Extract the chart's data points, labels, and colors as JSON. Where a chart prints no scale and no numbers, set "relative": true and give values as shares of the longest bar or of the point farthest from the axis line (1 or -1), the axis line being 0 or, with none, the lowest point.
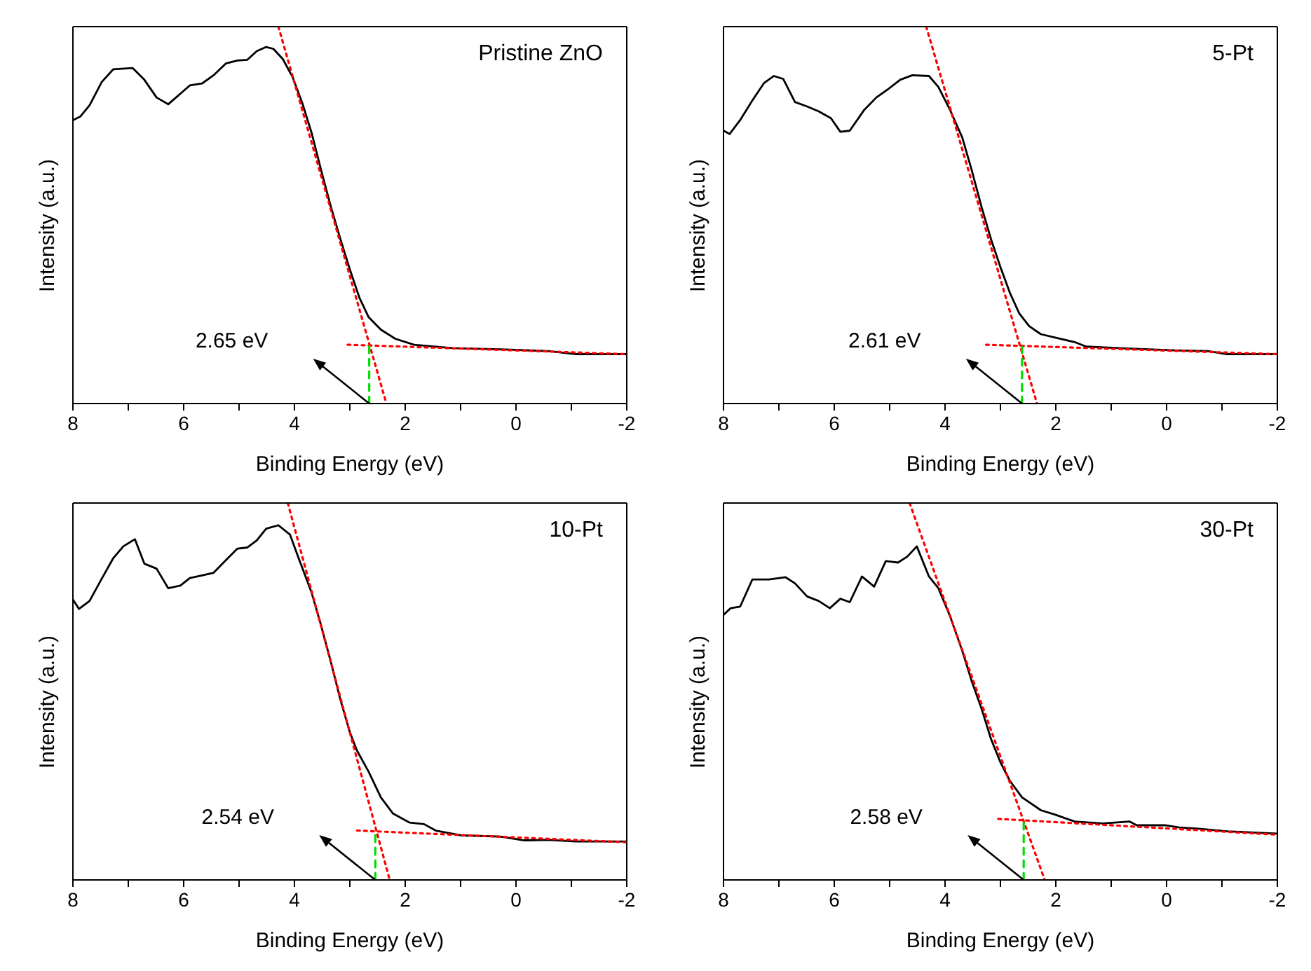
{
  "chart_data": [
    {
      "type": "line",
      "title": "Pristine ZnO",
      "xlabel": "Binding Energy (eV)",
      "ylabel": "Intensity (a.u.)",
      "relative": true,
      "xlim": [
        8,
        -2
      ],
      "xticks": [
        8,
        {
          "value": 7,
          "label": null
        },
        6,
        {
          "value": 5,
          "label": null
        },
        4,
        {
          "value": 3,
          "label": null
        },
        2,
        {
          "value": 1,
          "label": null
        },
        0,
        {
          "value": -1,
          "label": null
        },
        {
          "value": -2,
          "label": "-2"
        }
      ],
      "marker": "none",
      "annotations": [
        "2.65 eV"
      ],
      "series": [
        {
          "color": "#000000",
          "line_style": "solid",
          "x": [
            8,
            7.87,
            7.7,
            7.48,
            7.27,
            6.92,
            6.71,
            6.49,
            6.28,
            6.06,
            5.89,
            5.67,
            5.46,
            5.24,
            5.03,
            4.85,
            4.68,
            4.51,
            4.38,
            4.21,
            4.03,
            3.86,
            3.69,
            3.52,
            3.34,
            3.17,
            3.0,
            2.83,
            2.66,
            2.44,
            2.18,
            1.84,
            1.15,
            0.28,
            -0.58,
            -1.09,
            -2
          ],
          "values": [
            0.752,
            0.761,
            0.791,
            0.853,
            0.887,
            0.89,
            0.859,
            0.812,
            0.794,
            0.822,
            0.844,
            0.849,
            0.871,
            0.902,
            0.91,
            0.912,
            0.935,
            0.946,
            0.941,
            0.914,
            0.865,
            0.798,
            0.718,
            0.62,
            0.521,
            0.436,
            0.356,
            0.282,
            0.229,
            0.196,
            0.172,
            0.156,
            0.147,
            0.144,
            0.139,
            0.131,
            0.131
          ]
        },
        {
          "type": "line",
          "color": "#ff0000",
          "line_style": "dotted",
          "x": [
            4.29,
            2.34
          ],
          "values": [
            1,
            0
          ]
        },
        {
          "type": "line",
          "color": "#ff0000",
          "line_style": "dotted",
          "x": [
            3.04,
            -2
          ],
          "values": [
            0.156,
            0.131
          ]
        },
        {
          "type": "line",
          "color": "#00dd00",
          "line_style": "dashed",
          "x": [
            2.65,
            2.65
          ],
          "values": [
            0,
            0.152
          ]
        }
      ]
    },
    {
      "type": "line",
      "title": "5-Pt",
      "xlabel": "Binding Energy (eV)",
      "ylabel": "Intensity (a.u.)",
      "relative": true,
      "xlim": [
        8,
        -2
      ],
      "xticks": [
        8,
        {
          "value": 7,
          "label": null
        },
        6,
        {
          "value": 5,
          "label": null
        },
        4,
        {
          "value": 3,
          "label": null
        },
        2,
        {
          "value": 1,
          "label": null
        },
        0,
        {
          "value": -1,
          "label": null
        },
        {
          "value": -2,
          "label": "-2"
        }
      ],
      "marker": "none",
      "annotations": [
        "2.61 eV"
      ],
      "series": [
        {
          "color": "#000000",
          "line_style": "solid",
          "x": [
            8,
            7.89,
            7.7,
            7.48,
            7.27,
            7.09,
            6.92,
            6.71,
            6.49,
            6.28,
            6.06,
            5.89,
            5.72,
            5.46,
            5.24,
            5.03,
            4.81,
            4.59,
            4.29,
            4.12,
            3.91,
            3.69,
            3.52,
            3.34,
            3.17,
            3.0,
            2.83,
            2.66,
            2.48,
            2.27,
            2.01,
            1.66,
            1.45,
            0.72,
            -0.15,
            -0.75,
            -1.09,
            -2
          ],
          "values": [
            0.724,
            0.715,
            0.752,
            0.804,
            0.85,
            0.869,
            0.861,
            0.8,
            0.788,
            0.775,
            0.757,
            0.721,
            0.724,
            0.779,
            0.812,
            0.834,
            0.859,
            0.871,
            0.869,
            0.84,
            0.779,
            0.706,
            0.62,
            0.521,
            0.436,
            0.362,
            0.294,
            0.239,
            0.205,
            0.184,
            0.175,
            0.163,
            0.151,
            0.146,
            0.141,
            0.139,
            0.131,
            0.131
          ]
        },
        {
          "type": "line",
          "color": "#ff0000",
          "line_style": "dotted",
          "x": [
            4.34,
            2.34
          ],
          "values": [
            1,
            0
          ]
        },
        {
          "type": "line",
          "color": "#ff0000",
          "line_style": "dotted",
          "x": [
            3.26,
            -2
          ],
          "values": [
            0.156,
            0.131
          ]
        },
        {
          "type": "line",
          "color": "#00dd00",
          "line_style": "dashed",
          "x": [
            2.61,
            2.61
          ],
          "values": [
            0,
            0.15
          ]
        }
      ]
    },
    {
      "type": "line",
      "title": "10-Pt",
      "xlabel": "Binding Energy (eV)",
      "ylabel": "Intensity (a.u.)",
      "relative": true,
      "xlim": [
        8,
        -2
      ],
      "xticks": [
        8,
        {
          "value": 7,
          "label": null
        },
        6,
        {
          "value": 5,
          "label": null
        },
        4,
        {
          "value": 3,
          "label": null
        },
        2,
        {
          "value": 1,
          "label": null
        },
        0,
        {
          "value": -1,
          "label": null
        },
        {
          "value": -2,
          "label": "-2"
        }
      ],
      "marker": "none",
      "annotations": [
        "2.54 eV"
      ],
      "series": [
        {
          "color": "#000000",
          "line_style": "solid",
          "x": [
            8,
            7.89,
            7.7,
            7.48,
            7.27,
            7.09,
            6.88,
            6.71,
            6.49,
            6.28,
            6.06,
            5.89,
            5.67,
            5.46,
            5.24,
            5.03,
            4.85,
            4.68,
            4.51,
            4.29,
            4.08,
            3.91,
            3.69,
            3.52,
            3.34,
            3.17,
            3.0,
            2.87,
            2.66,
            2.44,
            2.22,
            1.92,
            1.66,
            1.45,
            0.97,
            0.28,
            -0.15,
            -0.58,
            -1.09,
            -2
          ],
          "values": [
            0.744,
            0.719,
            0.74,
            0.799,
            0.854,
            0.885,
            0.904,
            0.839,
            0.826,
            0.774,
            0.781,
            0.801,
            0.808,
            0.815,
            0.848,
            0.879,
            0.882,
            0.901,
            0.932,
            0.941,
            0.916,
            0.848,
            0.762,
            0.676,
            0.577,
            0.478,
            0.392,
            0.343,
            0.287,
            0.219,
            0.176,
            0.152,
            0.148,
            0.131,
            0.118,
            0.115,
            0.105,
            0.106,
            0.102,
            0.102
          ]
        },
        {
          "type": "line",
          "color": "#ff0000",
          "line_style": "dotted",
          "x": [
            4.12,
            2.28
          ],
          "values": [
            1,
            0
          ]
        },
        {
          "type": "line",
          "color": "#ff0000",
          "line_style": "dotted",
          "x": [
            2.87,
            -2
          ],
          "values": [
            0.131,
            0.1
          ]
        },
        {
          "type": "line",
          "color": "#00dd00",
          "line_style": "dashed",
          "x": [
            2.54,
            2.54
          ],
          "values": [
            0,
            0.128
          ]
        }
      ]
    },
    {
      "type": "line",
      "title": "30-Pt",
      "xlabel": "Binding Energy (eV)",
      "ylabel": "Intensity (a.u.)",
      "relative": true,
      "xlim": [
        8,
        -2
      ],
      "xticks": [
        8,
        {
          "value": 7,
          "label": null
        },
        6,
        {
          "value": 5,
          "label": null
        },
        4,
        {
          "value": 3,
          "label": null
        },
        2,
        {
          "value": 1,
          "label": null
        },
        0,
        {
          "value": -1,
          "label": null
        },
        {
          "value": -2,
          "label": "-2"
        }
      ],
      "marker": "none",
      "annotations": [
        "2.58 eV"
      ],
      "series": [
        {
          "color": "#000000",
          "line_style": "solid",
          "x": [
            8,
            7.87,
            7.7,
            7.48,
            7.18,
            6.88,
            6.71,
            6.49,
            6.28,
            6.08,
            5.89,
            5.72,
            5.5,
            5.28,
            5.07,
            4.85,
            4.68,
            4.51,
            4.29,
            4.12,
            3.91,
            3.69,
            3.52,
            3.34,
            3.17,
            3.0,
            2.83,
            2.61,
            2.27,
            2.01,
            1.66,
            1.15,
            0.67,
            0.54,
            0.03,
            -0.23,
            -0.58,
            -1.09,
            -2
          ],
          "values": [
            0.703,
            0.721,
            0.725,
            0.797,
            0.797,
            0.803,
            0.787,
            0.752,
            0.74,
            0.721,
            0.746,
            0.737,
            0.805,
            0.778,
            0.846,
            0.842,
            0.858,
            0.885,
            0.805,
            0.774,
            0.7,
            0.608,
            0.528,
            0.454,
            0.374,
            0.312,
            0.263,
            0.219,
            0.185,
            0.173,
            0.155,
            0.15,
            0.155,
            0.145,
            0.145,
            0.139,
            0.136,
            0.129,
            0.123
          ]
        },
        {
          "type": "line",
          "color": "#ff0000",
          "line_style": "dotted",
          "x": [
            4.64,
            2.2
          ],
          "values": [
            1,
            0
          ]
        },
        {
          "type": "line",
          "color": "#ff0000",
          "line_style": "dotted",
          "x": [
            3.04,
            -2
          ],
          "values": [
            0.162,
            0.12
          ]
        },
        {
          "type": "line",
          "color": "#00dd00",
          "line_style": "dashed",
          "x": [
            2.58,
            2.58
          ],
          "values": [
            0,
            0.16
          ]
        }
      ]
    }
  ]
}
